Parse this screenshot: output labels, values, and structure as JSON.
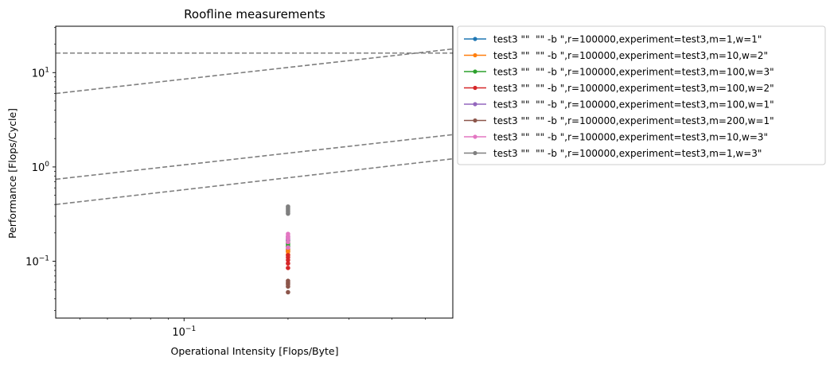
{
  "chart_data": {
    "type": "scatter",
    "title": "Roofline measurements",
    "xlabel": "Operational Intensity [Flops/Byte]",
    "ylabel": "Performance [Flops/Cycle]",
    "xscale": "log",
    "yscale": "log",
    "xlim": [
      0.0425,
      0.6
    ],
    "ylim": [
      0.025,
      31
    ],
    "grid": false,
    "legend_placement": "outside-right-top",
    "x_tick_labels": [
      {
        "value": 0.1,
        "mantissa": "10",
        "exponent": "−1"
      }
    ],
    "y_tick_labels": [
      {
        "value": 0.1,
        "mantissa": "10",
        "exponent": "−1"
      },
      {
        "value": 1,
        "mantissa": "10",
        "exponent": "0"
      },
      {
        "value": 10,
        "mantissa": "10",
        "exponent": "1"
      }
    ],
    "rooflines": [
      {
        "x": [
          0.0425,
          0.6
        ],
        "y": [
          16.1,
          16.1
        ],
        "color": "#7f7f7f"
      },
      {
        "x": [
          0.0425,
          0.6
        ],
        "y": [
          6.0,
          17.8
        ],
        "color": "#7f7f7f"
      },
      {
        "x": [
          0.0425,
          0.6
        ],
        "y": [
          0.74,
          2.2
        ],
        "color": "#7f7f7f"
      },
      {
        "x": [
          0.0425,
          0.6
        ],
        "y": [
          0.4,
          1.22
        ],
        "color": "#7f7f7f"
      }
    ],
    "series": [
      {
        "name": "test3 \"\"  \"\" -b \",r=100000,experiment=test3,m=1,w=1\"",
        "color": "#1f77b4",
        "x": [
          0.2,
          0.2,
          0.2
        ],
        "y": [
          0.128,
          0.135,
          0.142
        ]
      },
      {
        "name": "test3 \"\"  \"\" -b \",r=100000,experiment=test3,m=10,w=2\"",
        "color": "#ff7f0e",
        "x": [
          0.2,
          0.2,
          0.2
        ],
        "y": [
          0.118,
          0.126,
          0.132
        ]
      },
      {
        "name": "test3 \"\"  \"\" -b \",r=100000,experiment=test3,m=100,w=3\"",
        "color": "#2ca02c",
        "x": [
          0.2,
          0.2,
          0.2,
          0.2
        ],
        "y": [
          0.145,
          0.152,
          0.158,
          0.165
        ]
      },
      {
        "name": "test3 \"\"  \"\" -b \",r=100000,experiment=test3,m=100,w=2\"",
        "color": "#d62728",
        "x": [
          0.2,
          0.2,
          0.2,
          0.2,
          0.2
        ],
        "y": [
          0.085,
          0.095,
          0.103,
          0.11,
          0.116
        ]
      },
      {
        "name": "test3 \"\"  \"\" -b \",r=100000,experiment=test3,m=100,w=1\"",
        "color": "#9467bd",
        "x": [
          0.2,
          0.2,
          0.2
        ],
        "y": [
          0.17,
          0.176,
          0.182
        ]
      },
      {
        "name": "test3 \"\"  \"\" -b \",r=100000,experiment=test3,m=200,w=1\"",
        "color": "#8c564b",
        "x": [
          0.2,
          0.2,
          0.2,
          0.2,
          0.2
        ],
        "y": [
          0.047,
          0.054,
          0.057,
          0.059,
          0.062
        ]
      },
      {
        "name": "test3 \"\"  \"\" -b \",r=100000,experiment=test3,m=10,w=3\"",
        "color": "#e377c2",
        "x": [
          0.2,
          0.2,
          0.2,
          0.2,
          0.2
        ],
        "y": [
          0.14,
          0.16,
          0.175,
          0.185,
          0.195
        ]
      },
      {
        "name": "test3 \"\"  \"\" -b \",r=100000,experiment=test3,m=1,w=3\"",
        "color": "#7f7f7f",
        "x": [
          0.2,
          0.2,
          0.2,
          0.2,
          0.2
        ],
        "y": [
          0.32,
          0.335,
          0.35,
          0.365,
          0.38
        ]
      }
    ]
  }
}
